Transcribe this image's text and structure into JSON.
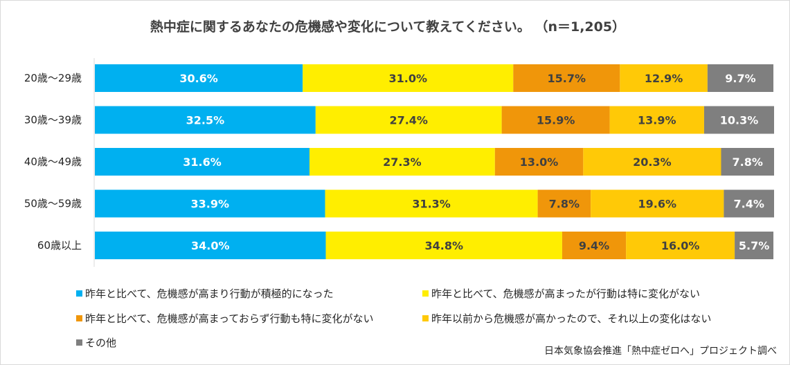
{
  "chart_data": {
    "type": "bar",
    "orientation": "horizontal",
    "stacked": true,
    "normalized": true,
    "title": "熱中症に関するあなたの危機感や変化について教えてください。 （n＝1,205）",
    "categories": [
      "20歳～29歳",
      "30歳～39歳",
      "40歳～49歳",
      "50歳～59歳",
      "60歳以上"
    ],
    "series": [
      {
        "name": "昨年と比べて、危機感が高まり行動が積極的になった",
        "color": "#00b0f0",
        "label_color": "#ffffff",
        "values": [
          30.6,
          32.5,
          31.6,
          33.9,
          34.0
        ],
        "labels": [
          "30.6%",
          "32.5%",
          "31.6%",
          "33.9%",
          "34.0%"
        ]
      },
      {
        "name": "昨年と比べて、危機感が高まったが行動は特に変化がない",
        "color": "#ffee00",
        "label_color": "#404040",
        "values": [
          31.0,
          27.4,
          27.3,
          31.3,
          34.8
        ],
        "labels": [
          "31.0%",
          "27.4%",
          "27.3%",
          "31.3%",
          "34.8%"
        ]
      },
      {
        "name": "昨年と比べて、危機感が高まっておらず行動も特に変化がない",
        "color": "#f0960a",
        "label_color": "#404040",
        "values": [
          15.7,
          15.9,
          13.0,
          7.8,
          9.4
        ],
        "labels": [
          "15.7%",
          "15.9%",
          "13.0%",
          "7.8%",
          "9.4%"
        ]
      },
      {
        "name": "昨年以前から危機感が高かったので、それ以上の変化はない",
        "color": "#ffc907",
        "label_color": "#404040",
        "values": [
          12.9,
          13.9,
          20.3,
          19.6,
          16.0
        ],
        "labels": [
          "12.9%",
          "13.9%",
          "20.3%",
          "19.6%",
          "16.0%"
        ]
      },
      {
        "name": "その他",
        "color": "#7f7f7f",
        "label_color": "#ffffff",
        "values": [
          9.7,
          10.3,
          7.8,
          7.4,
          5.7
        ],
        "labels": [
          "9.7%",
          "10.3%",
          "7.8%",
          "7.4%",
          "5.7%"
        ]
      }
    ],
    "xlim": [
      0,
      100
    ],
    "grid": false,
    "legend_position": "bottom",
    "legend_marker": "■"
  },
  "source": "日本気象協会推進「熱中症ゼロへ」プロジェクト調べ"
}
